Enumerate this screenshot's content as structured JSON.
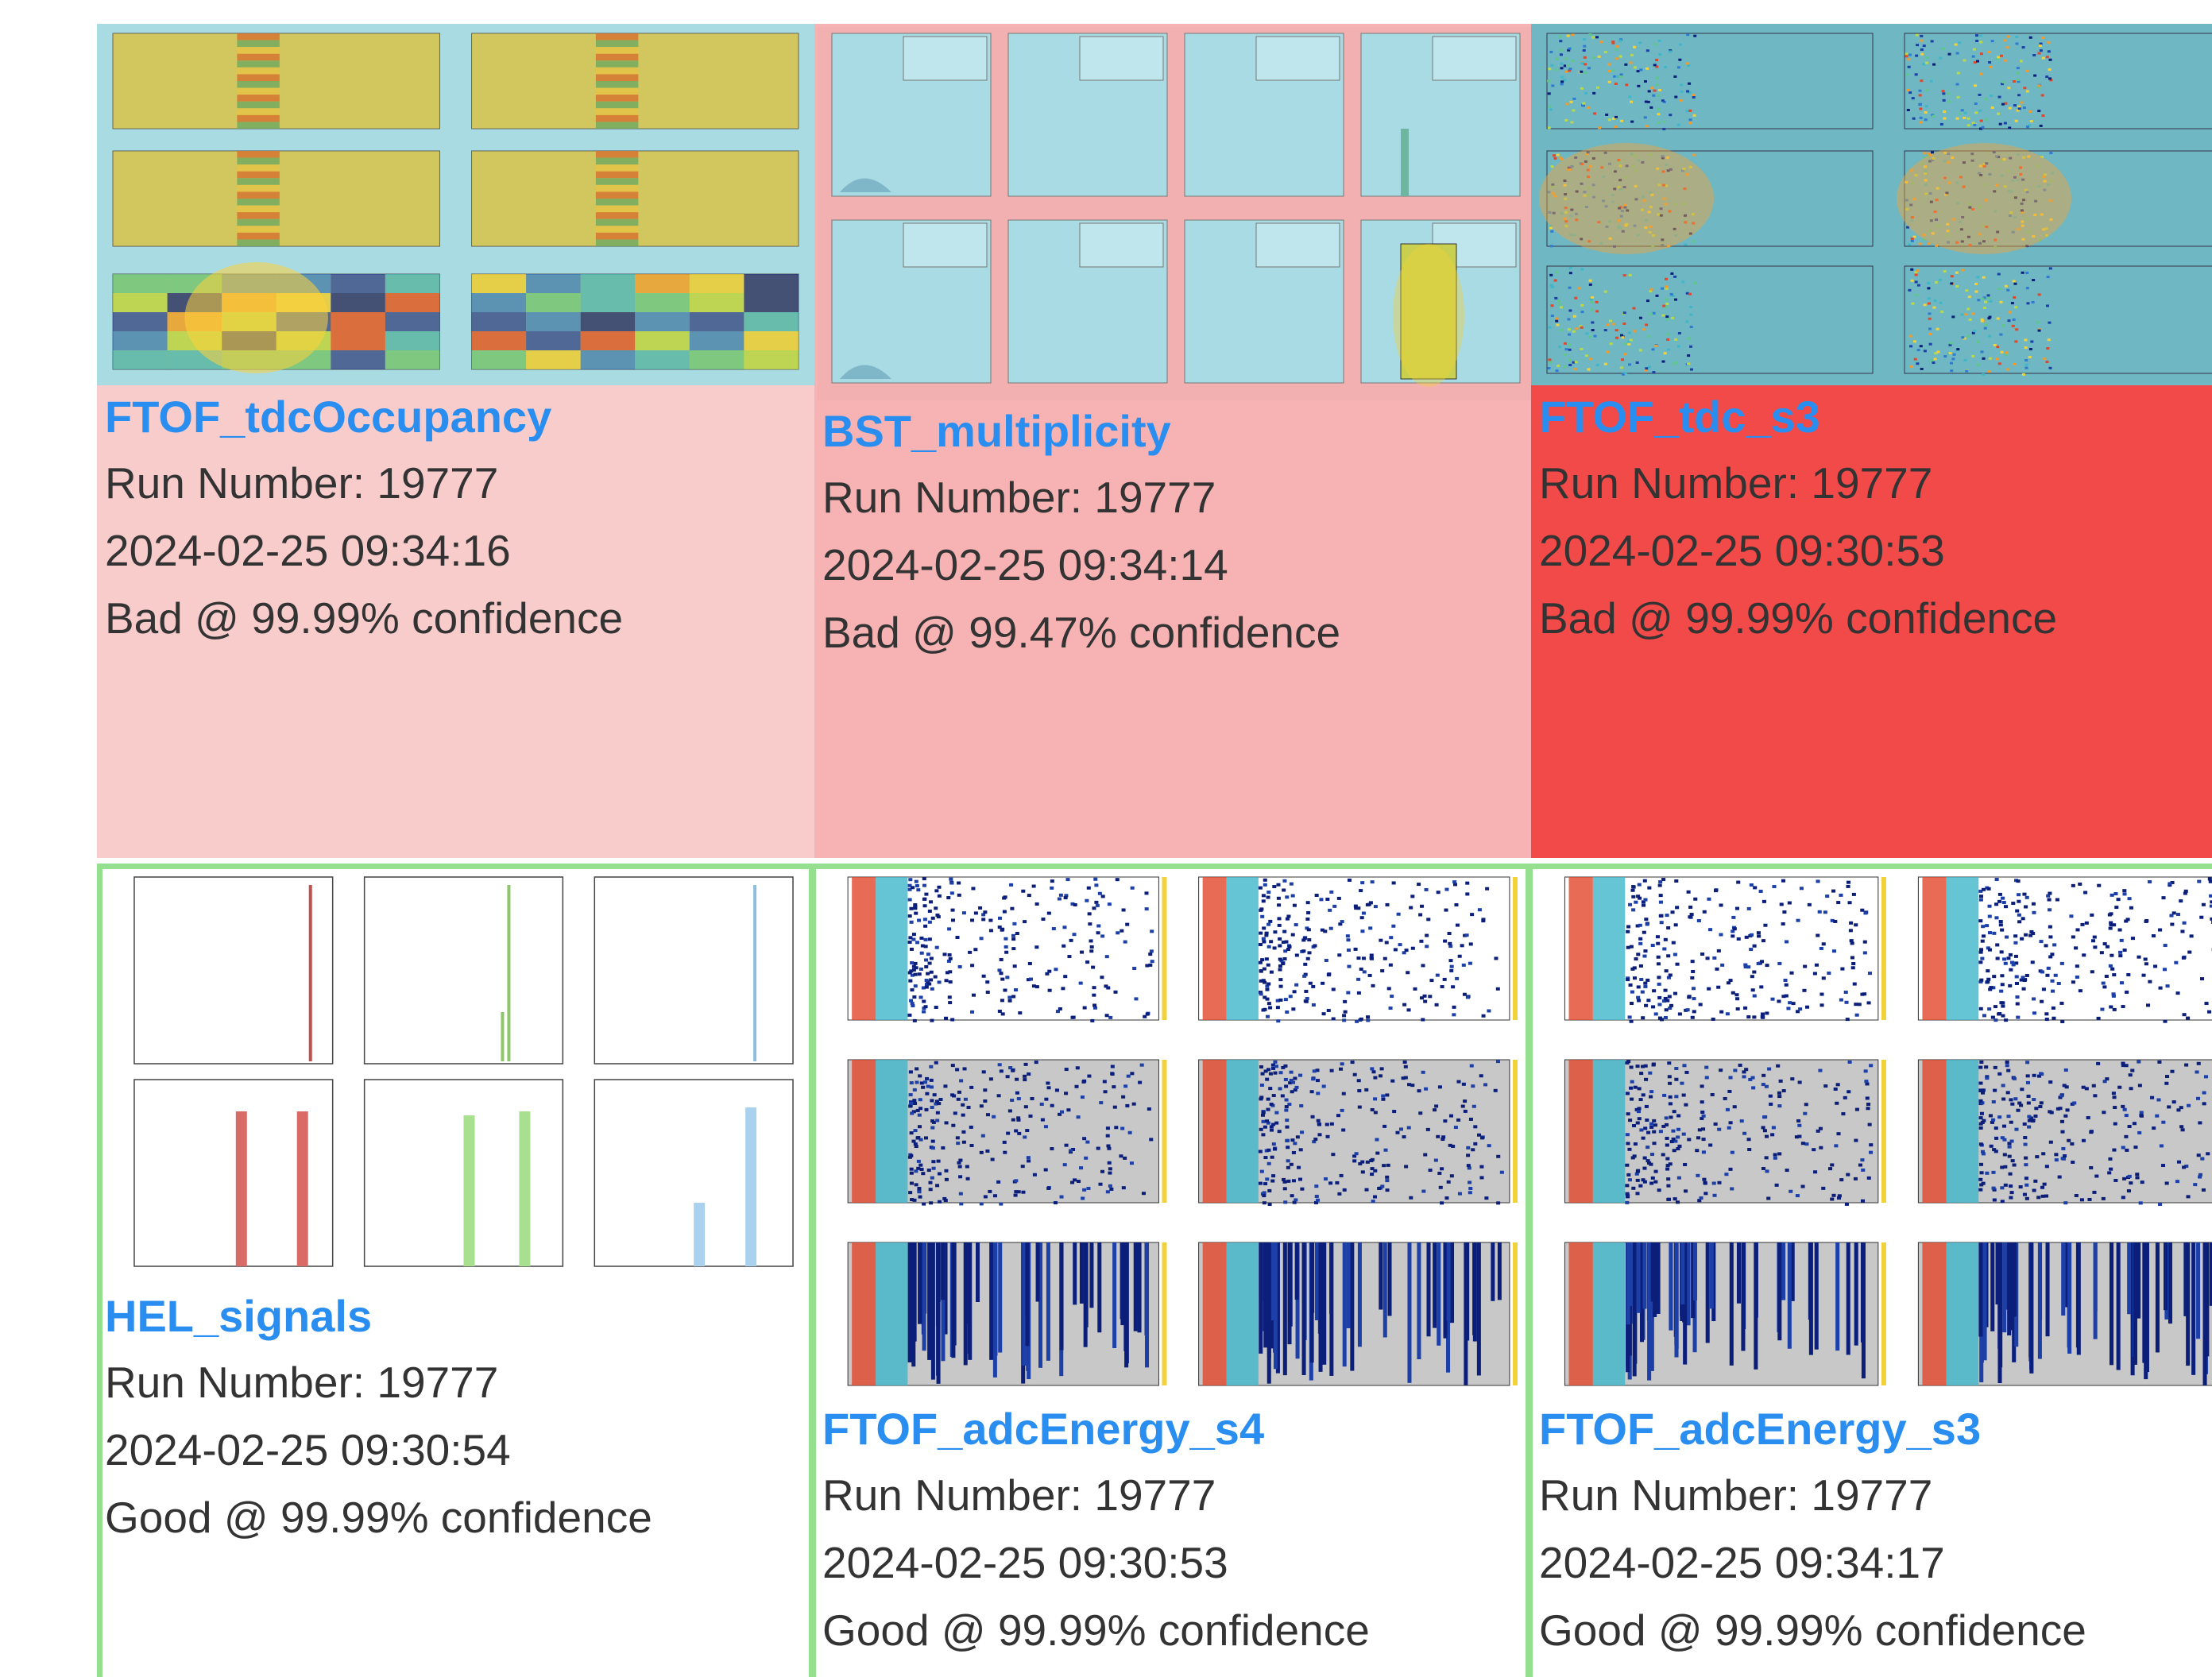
{
  "colors": {
    "bad_light": "#f9cccc",
    "bad_medium": "#f7b3b3",
    "bad_strong": "#f24a48",
    "good_border": "#94e08f",
    "title": "#2a8ef0",
    "text": "#333333"
  },
  "cards": [
    {
      "title": "FTOF_tdcOccupancy",
      "run": "Run Number: 19777",
      "timestamp": "2024-02-25 09:34:16",
      "verdict": "Bad @ 99.99% confidence",
      "status": "bad",
      "thumbnail": "tdc-occupancy-plots"
    },
    {
      "title": "BST_multiplicity",
      "run": "Run Number: 19777",
      "timestamp": "2024-02-25 09:34:14",
      "verdict": "Bad @ 99.47% confidence",
      "status": "bad",
      "thumbnail": "multiplicity-histograms"
    },
    {
      "title": "FTOF_tdc_s3",
      "run": "Run Number: 19777",
      "timestamp": "2024-02-25 09:30:53",
      "verdict": "Bad @ 99.99% confidence",
      "status": "bad",
      "thumbnail": "tdc-channel-plots"
    },
    {
      "title": "HEL_signals",
      "run": "Run Number: 19777",
      "timestamp": "2024-02-25 09:30:54",
      "verdict": "Good @ 99.99% confidence",
      "status": "good",
      "thumbnail": "helicity-histograms"
    },
    {
      "title": "FTOF_adcEnergy_s4",
      "run": "Run Number: 19777",
      "timestamp": "2024-02-25 09:30:53",
      "verdict": "Good @ 99.99% confidence",
      "status": "good",
      "thumbnail": "adc-energy-plots"
    },
    {
      "title": "FTOF_adcEnergy_s3",
      "run": "Run Number: 19777",
      "timestamp": "2024-02-25 09:34:17",
      "verdict": "Good @ 99.99% confidence",
      "status": "good",
      "thumbnail": "adc-energy-plots"
    }
  ]
}
